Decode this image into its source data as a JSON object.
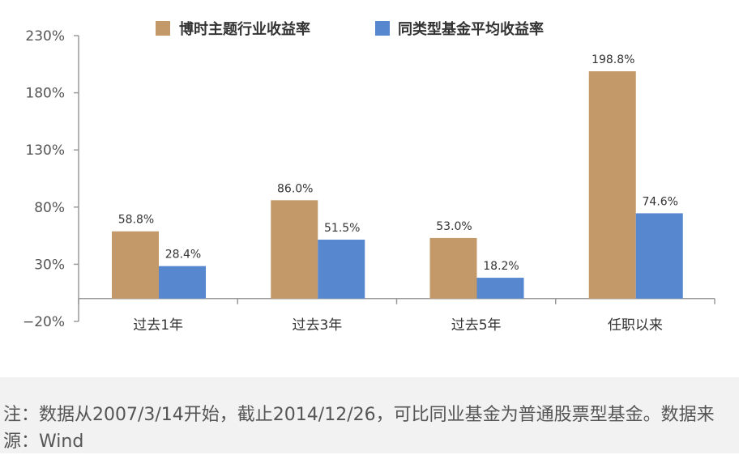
{
  "chart_data": {
    "type": "bar",
    "categories": [
      "过去1年",
      "过去3年",
      "过去5年",
      "任职以来"
    ],
    "series": [
      {
        "name": "博时主题行业收益率",
        "values": [
          58.8,
          86.0,
          53.0,
          198.8
        ],
        "labels": [
          "58.8%",
          "86.0%",
          "53.0%",
          "198.8%"
        ]
      },
      {
        "name": "同类型基金平均收益率",
        "values": [
          28.4,
          51.5,
          18.2,
          74.6
        ],
        "labels": [
          "28.4%",
          "51.5%",
          "18.2%",
          "74.6%"
        ]
      }
    ],
    "yticks": [
      230,
      180,
      130,
      80,
      30,
      -20
    ],
    "ytick_labels": [
      "230%",
      "180%",
      "130%",
      "80%",
      "30%",
      "−20%"
    ],
    "ylim": [
      -20,
      230
    ],
    "title": "",
    "xlabel": "",
    "ylabel": "",
    "legend_position": "top",
    "grid": false,
    "colors": [
      "#c4996a",
      "#5787cf"
    ]
  },
  "note": {
    "text": "注：数据从2007/3/14开始，截止2014/12/26，可比同业基金为普通股票型基金。数据来源：Wind"
  }
}
